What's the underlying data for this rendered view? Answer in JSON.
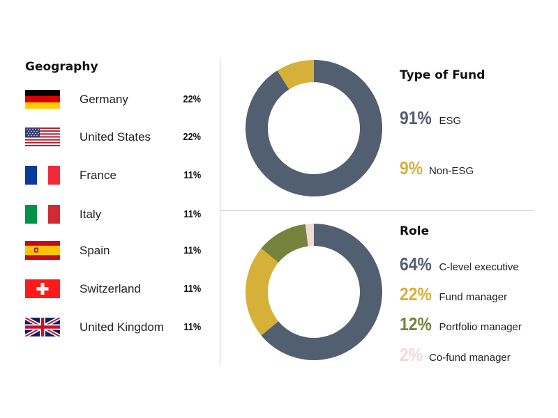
{
  "geography": {
    "title": "Geography",
    "rows": [
      {
        "country": "Germany",
        "pct": "22%",
        "flag_icon": "germany-flag-icon"
      },
      {
        "country": "United States",
        "pct": "22%",
        "flag_icon": "usa-flag-icon"
      },
      {
        "country": "France",
        "pct": "11%",
        "flag_icon": "france-flag-icon"
      },
      {
        "country": "Italy",
        "pct": "11%",
        "flag_icon": "italy-flag-icon"
      },
      {
        "country": "Spain",
        "pct": "11%",
        "flag_icon": "spain-flag-icon"
      },
      {
        "country": "Switzerland",
        "pct": "11%",
        "flag_icon": "switzerland-flag-icon"
      },
      {
        "country": "United Kingdom",
        "pct": "11%",
        "flag_icon": "uk-flag-icon"
      }
    ]
  },
  "colors": {
    "slate": "#525f70",
    "gold": "#d6b13a",
    "olive": "#76833d",
    "pink": "#f1d9d4"
  },
  "fund_type": {
    "title": "Type of Fund",
    "legend": [
      {
        "pct": "91%",
        "label": "ESG",
        "color": "#525f70"
      },
      {
        "pct": "9%",
        "label": "Non-ESG",
        "color": "#d6b13a"
      }
    ]
  },
  "role": {
    "title": "Role",
    "legend": [
      {
        "pct": "64%",
        "label": "C-level executive",
        "color": "#525f70"
      },
      {
        "pct": "22%",
        "label": "Fund manager",
        "color": "#d6b13a"
      },
      {
        "pct": "12%",
        "label": "Portfolio manager",
        "color": "#76833d"
      },
      {
        "pct": "2%",
        "label": "Co-fund manager",
        "color": "#f1d9d4"
      }
    ]
  },
  "chart_data": [
    {
      "type": "pie",
      "title": "Type of Fund",
      "categories": [
        "ESG",
        "Non-ESG"
      ],
      "values": [
        91,
        9
      ],
      "colors": [
        "#525f70",
        "#d6b13a"
      ]
    },
    {
      "type": "pie",
      "title": "Role",
      "categories": [
        "C-level executive",
        "Fund manager",
        "Portfolio manager",
        "Co-fund manager"
      ],
      "values": [
        64,
        22,
        12,
        2
      ],
      "colors": [
        "#525f70",
        "#d6b13a",
        "#76833d",
        "#f1d9d4"
      ]
    }
  ]
}
